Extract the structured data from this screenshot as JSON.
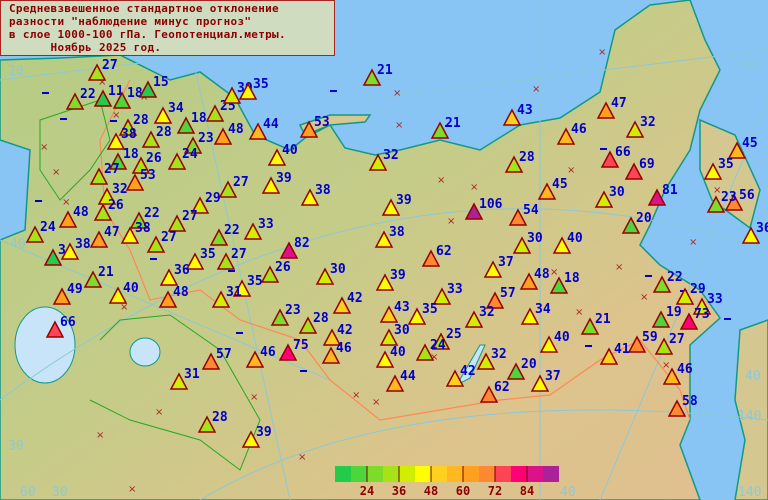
{
  "title": {
    "lines": [
      "Средневзвешенное стандартное отклонение",
      "разности \"наблюдение минус прогноз\"",
      "в слое 1000-100 гПа. Геопотенциал.метры.",
      "      Ноябрь 2025 год."
    ]
  },
  "legend": {
    "colors": [
      "#22cc4a",
      "#4cd63a",
      "#7ddc2a",
      "#a5e318",
      "#d0ee00",
      "#ffff00",
      "#ffd020",
      "#ffb820",
      "#ffa020",
      "#ff8833",
      "#ff4455",
      "#ff0077",
      "#dd1188",
      "#aa2299"
    ],
    "ticks": [
      "24",
      "36",
      "48",
      "60",
      "72",
      "84"
    ]
  },
  "grid_labels": [
    "20",
    "40",
    "30",
    "180",
    "40",
    "140",
    "60",
    "30",
    "40",
    "140"
  ],
  "stations": [
    "27",
    "22",
    "11",
    "18",
    "15",
    "34",
    "18",
    "25",
    "30",
    "35",
    "28",
    "38",
    "28",
    "48",
    "23",
    "44",
    "53",
    "21",
    "40",
    "18",
    "26",
    "24",
    "27",
    "53",
    "32",
    "27",
    "29",
    "39",
    "38",
    "32",
    "21",
    "39",
    "106",
    "38",
    "26",
    "48",
    "22",
    "27",
    "24",
    "47",
    "38",
    "27",
    "22",
    "33",
    "82",
    "62",
    "38",
    "3",
    "35",
    "27",
    "26",
    "30",
    "39",
    "37",
    "48",
    "21",
    "36",
    "40",
    "49",
    "48",
    "35",
    "31",
    "42",
    "33",
    "57",
    "23",
    "43",
    "35",
    "32",
    "34",
    "28",
    "42",
    "30",
    "25",
    "24",
    "75",
    "46",
    "40",
    "32",
    "20",
    "42",
    "44",
    "62",
    "37",
    "46",
    "66",
    "57",
    "31",
    "28",
    "39",
    "43",
    "46",
    "47",
    "32",
    "28",
    "66",
    "69",
    "45",
    "30",
    "54",
    "30",
    "40",
    "81",
    "20",
    "45",
    "35",
    "56",
    "23",
    "36",
    "18",
    "22",
    "29",
    "33",
    "19",
    "73",
    "21",
    "40",
    "59",
    "27",
    "41",
    "46",
    "58"
  ],
  "colors": {
    "sea": "#88c4f4",
    "land": "#d8c890",
    "lowland": "#b8cc80",
    "title_text": "#8b0000",
    "label": "#0000cc",
    "marker_outline": "#990000"
  }
}
